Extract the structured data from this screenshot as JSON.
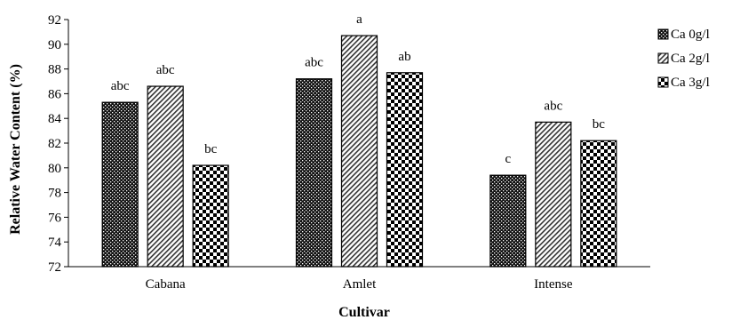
{
  "chart_data": {
    "type": "bar",
    "title": "",
    "xlabel": "Cultivar",
    "ylabel": "Relative Water Content (%)",
    "ylim": [
      72,
      92
    ],
    "yticks": [
      72,
      74,
      76,
      78,
      80,
      82,
      84,
      86,
      88,
      90,
      92
    ],
    "categories": [
      "Cabana",
      "Amlet",
      "Intense"
    ],
    "grid": false,
    "legend_position": "right",
    "series": [
      {
        "name": "Ca 0g/l",
        "pattern": "dots",
        "values": [
          85.3,
          87.2,
          79.4
        ],
        "letters": [
          "abc",
          "abc",
          "c"
        ]
      },
      {
        "name": "Ca 2g/l",
        "pattern": "diagonal-stripes",
        "values": [
          86.6,
          90.7,
          83.7
        ],
        "letters": [
          "abc",
          "a",
          "abc"
        ]
      },
      {
        "name": "Ca 3g/l",
        "pattern": "checkerboard",
        "values": [
          80.2,
          87.7,
          82.2
        ],
        "letters": [
          "bc",
          "ab",
          "bc"
        ]
      }
    ]
  }
}
